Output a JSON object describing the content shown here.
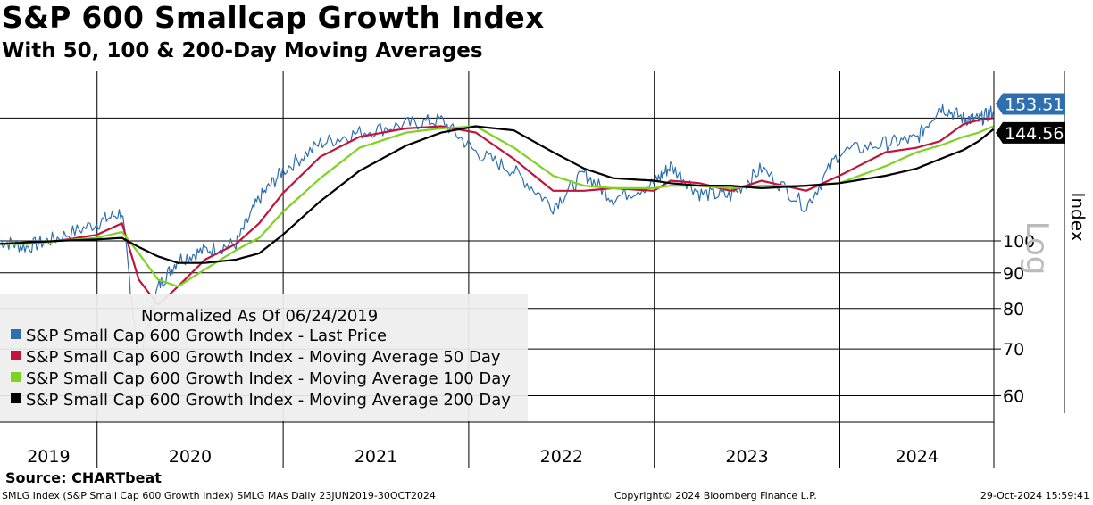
{
  "title": "S&P 600 Smallcap Growth Index",
  "subtitle": "With 50, 100 & 200-Day Moving Averages",
  "source": "Source: CHARTbeat",
  "footer": {
    "left": "SMLG Index (S&P Small Cap 600 Growth Index) SMLG MAs  Daily 23JUN2019-30OCT2024",
    "middle": "Copyright© 2024 Bloomberg Finance L.P.",
    "right": "29-Oct-2024 15:59:41"
  },
  "chart_data": {
    "type": "line",
    "title": "S&P 600 Smallcap Growth Index",
    "subtitle": "With 50, 100 & 200-Day Moving Averages",
    "ylabel": "Index",
    "scale_note": "Log",
    "yscale": "log",
    "ylim": [
      55,
      175
    ],
    "y_ticks": [
      60,
      70,
      80,
      90,
      100
    ],
    "reference_line": 150,
    "grid": true,
    "legend_position": "bottom-left",
    "legend_header": "Normalized As Of 06/24/2019",
    "x_labels": [
      "2019",
      "2020",
      "2021",
      "2022",
      "2023",
      "2024"
    ],
    "xlim": [
      "2019-06-24",
      "2024-10-30"
    ],
    "x": [
      "2019-06-24",
      "2019-08-15",
      "2019-10-15",
      "2019-12-31",
      "2020-02-19",
      "2020-03-23",
      "2020-04-30",
      "2020-06-08",
      "2020-07-31",
      "2020-09-30",
      "2020-11-15",
      "2020-12-31",
      "2021-03-15",
      "2021-05-31",
      "2021-08-31",
      "2021-11-08",
      "2022-01-15",
      "2022-03-31",
      "2022-06-16",
      "2022-08-16",
      "2022-10-12",
      "2022-12-31",
      "2023-02-02",
      "2023-03-31",
      "2023-05-31",
      "2023-07-31",
      "2023-10-27",
      "2023-12-31",
      "2024-03-31",
      "2024-05-31",
      "2024-07-16",
      "2024-08-31",
      "2024-09-30",
      "2024-10-29"
    ],
    "series": [
      {
        "name": "S&P Small Cap 600 Growth Index - Last Price",
        "color": "#2f6fb0",
        "values": [
          100,
          98,
          101,
          106,
          110,
          67,
          86,
          94,
          97,
          99,
          115,
          126,
          138,
          143,
          147,
          149,
          134,
          126,
          112,
          125,
          115,
          121,
          128,
          117,
          116,
          127,
          112,
          134,
          138,
          140,
          156,
          150,
          149,
          153.51
        ]
      },
      {
        "name": "S&P Small Cap 600 Growth Index - Moving Average 50 Day",
        "color": "#c0143c",
        "values": [
          99,
          99,
          100,
          102,
          106,
          88,
          81,
          86,
          94,
          99,
          106,
          117,
          132,
          141,
          145,
          146,
          143,
          131,
          118,
          118,
          119,
          118,
          122,
          121,
          118,
          122,
          118,
          124,
          134,
          136,
          139,
          147,
          149,
          150
        ]
      },
      {
        "name": "S&P Small Cap 600 Growth Index - Moving Average 100 Day",
        "color": "#7ed321",
        "values": [
          99,
          99,
          100,
          101,
          103,
          96,
          88,
          86,
          91,
          97,
          101,
          110,
          123,
          136,
          143,
          145,
          146,
          136,
          124,
          120,
          119,
          119,
          120,
          120,
          119,
          120,
          120,
          121,
          128,
          134,
          137,
          141,
          143,
          146
        ]
      },
      {
        "name": "S&P Small Cap 600 Growth Index - Moving Average 200 Day",
        "color": "#000000",
        "values": [
          99,
          99.5,
          100,
          100.5,
          101,
          98,
          95,
          93,
          93,
          94,
          96,
          102,
          114,
          126,
          137,
          143,
          146,
          144,
          134,
          127,
          123,
          122,
          121,
          120,
          120,
          119,
          120,
          121,
          124,
          127,
          131,
          135,
          139,
          144.56
        ]
      }
    ],
    "last_values": [
      "153.51",
      "144.56"
    ],
    "last_value_colors": [
      "#2f6fb0",
      "#000000"
    ]
  }
}
